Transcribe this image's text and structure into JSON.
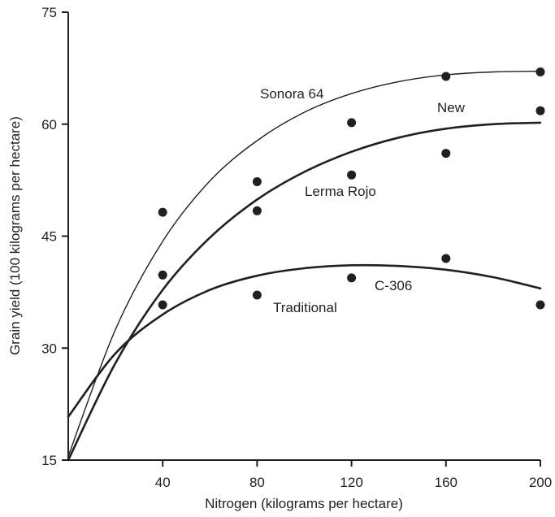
{
  "chart_data": {
    "type": "scatter",
    "xlabel": "Nitrogen (kilograms per hectare)",
    "ylabel": "Grain yield (100 kilograms per hectare)",
    "xlim": [
      0,
      200
    ],
    "ylim": [
      15,
      75
    ],
    "xticks": [
      40,
      80,
      120,
      160,
      200
    ],
    "yticks": [
      15,
      30,
      45,
      60,
      75
    ],
    "grid": false,
    "legend": "none",
    "series": [
      {
        "name": "Sonora 64",
        "points": [
          [
            40,
            48.2
          ],
          [
            80,
            52.3
          ],
          [
            120,
            60.2
          ],
          [
            160,
            66.4
          ],
          [
            200,
            67.0
          ]
        ],
        "curve": [
          [
            0,
            15.5
          ],
          [
            20,
            32.5
          ],
          [
            40,
            44.3
          ],
          [
            60,
            52.4
          ],
          [
            80,
            57.8
          ],
          [
            100,
            61.6
          ],
          [
            120,
            64.1
          ],
          [
            140,
            65.7
          ],
          [
            160,
            66.6
          ],
          [
            180,
            67.0
          ],
          [
            200,
            67.1
          ]
        ],
        "stroke": 1.4
      },
      {
        "name": "Lerma Rojo",
        "group_label": "New",
        "points": [
          [
            40,
            39.8
          ],
          [
            80,
            48.4
          ],
          [
            120,
            53.2
          ],
          [
            160,
            56.1
          ],
          [
            200,
            61.8
          ]
        ],
        "curve": [
          [
            0,
            15.0
          ],
          [
            20,
            28.0
          ],
          [
            40,
            37.8
          ],
          [
            60,
            44.8
          ],
          [
            80,
            49.9
          ],
          [
            100,
            53.6
          ],
          [
            120,
            56.3
          ],
          [
            140,
            58.2
          ],
          [
            160,
            59.4
          ],
          [
            180,
            60.0
          ],
          [
            200,
            60.2
          ]
        ],
        "stroke": 2.6
      },
      {
        "name": "C-306",
        "group_label": "Traditional",
        "points": [
          [
            40,
            35.8
          ],
          [
            80,
            37.1
          ],
          [
            120,
            39.4
          ],
          [
            160,
            42.0
          ],
          [
            200,
            35.8
          ]
        ],
        "curve": [
          [
            0,
            20.8
          ],
          [
            20,
            29.3
          ],
          [
            40,
            34.5
          ],
          [
            60,
            37.8
          ],
          [
            80,
            39.7
          ],
          [
            100,
            40.7
          ],
          [
            120,
            41.1
          ],
          [
            140,
            41.0
          ],
          [
            160,
            40.5
          ],
          [
            180,
            39.5
          ],
          [
            200,
            38.0
          ]
        ],
        "stroke": 2.6
      }
    ]
  }
}
